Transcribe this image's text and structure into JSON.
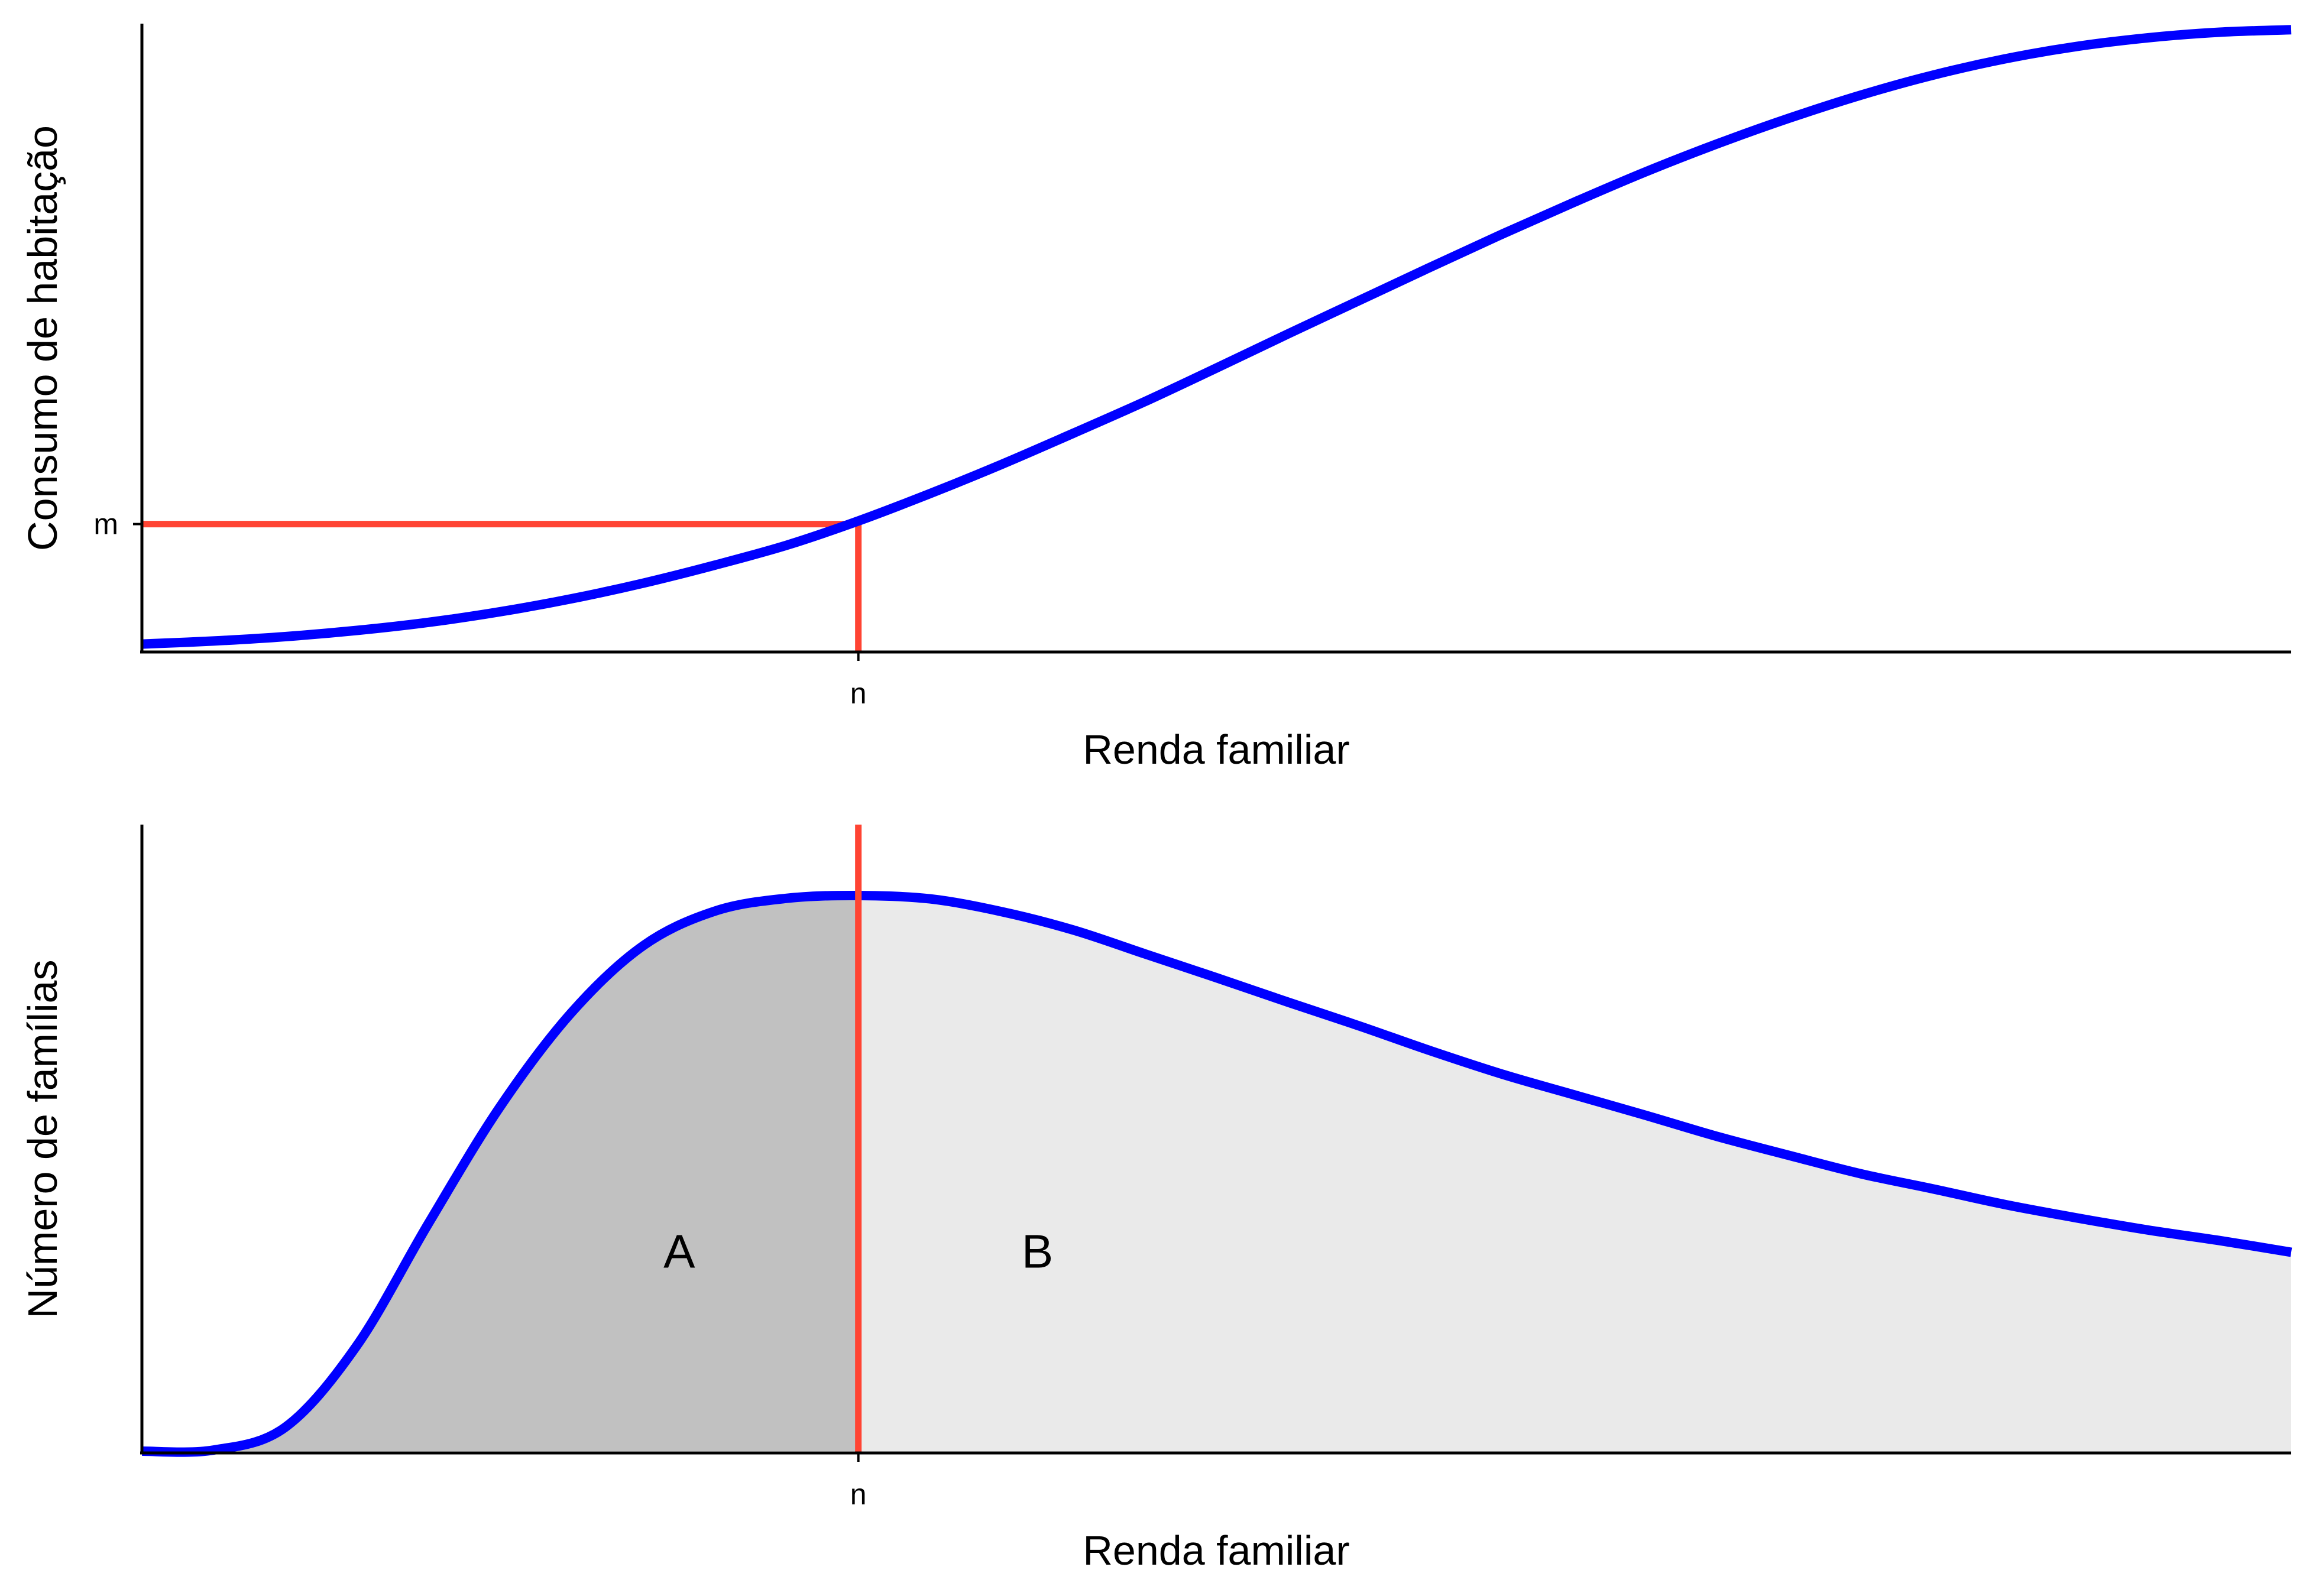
{
  "chart_data": [
    {
      "type": "line",
      "xlabel": "Renda familiar",
      "ylabel": "Consumo de habitação",
      "x_ticks": [
        {
          "x": 1.0,
          "label": "n"
        }
      ],
      "y_ticks": [
        {
          "y": 0.2,
          "label": "m"
        }
      ],
      "xlim": [
        0,
        3
      ],
      "ylim": [
        0,
        1
      ],
      "grid": false,
      "series": [
        {
          "color": "#0000FF",
          "x": [
            0.0,
            0.1,
            0.2,
            0.3,
            0.4,
            0.5,
            0.6,
            0.7,
            0.8,
            0.9,
            1.0,
            1.1,
            1.2,
            1.3,
            1.4,
            1.5,
            1.6,
            1.7,
            1.8,
            1.9,
            2.0,
            2.1,
            2.2,
            2.3,
            2.4,
            2.5,
            2.6,
            2.7,
            2.8,
            2.9,
            3.0
          ],
          "y": [
            0.007,
            0.012,
            0.019,
            0.029,
            0.042,
            0.059,
            0.08,
            0.105,
            0.134,
            0.166,
            0.205,
            0.249,
            0.296,
            0.346,
            0.397,
            0.451,
            0.506,
            0.56,
            0.614,
            0.667,
            0.718,
            0.767,
            0.812,
            0.853,
            0.89,
            0.922,
            0.948,
            0.968,
            0.982,
            0.991,
            0.995
          ]
        }
      ],
      "guides": {
        "color": "#FF4433",
        "x": 1.0,
        "y": 0.2
      }
    },
    {
      "type": "area",
      "xlabel": "Renda familiar",
      "ylabel": "Número de famílias",
      "x_ticks": [
        {
          "x": 1.0,
          "label": "n"
        }
      ],
      "xlim": [
        0,
        3
      ],
      "ylim": [
        0,
        1
      ],
      "grid": false,
      "series": [
        {
          "color": "#0000FF",
          "x": [
            0.0,
            0.1,
            0.2,
            0.3,
            0.4,
            0.5,
            0.6,
            0.7,
            0.8,
            0.9,
            1.0,
            1.1,
            1.2,
            1.3,
            1.4,
            1.5,
            1.6,
            1.7,
            1.8,
            1.9,
            2.0,
            2.1,
            2.2,
            2.3,
            2.4,
            2.5,
            2.6,
            2.7,
            2.8,
            2.9,
            3.0
          ],
          "y": [
            0.0,
            0.002,
            0.043,
            0.19,
            0.41,
            0.62,
            0.79,
            0.91,
            0.972,
            0.995,
            1.0,
            0.994,
            0.971,
            0.938,
            0.895,
            0.852,
            0.808,
            0.765,
            0.72,
            0.678,
            0.641,
            0.604,
            0.566,
            0.532,
            0.499,
            0.472,
            0.444,
            0.42,
            0.398,
            0.379,
            0.358
          ]
        }
      ],
      "regions": [
        {
          "label": "A",
          "fill": "#C1C1C1",
          "from": 0,
          "to": 1.0,
          "label_pos": [
            0.75,
            0.36
          ]
        },
        {
          "label": "B",
          "fill": "#EAEAEA",
          "from": 1.0,
          "to": 3.0,
          "label_pos": [
            1.25,
            0.36
          ]
        }
      ],
      "guides": {
        "color": "#FF4433",
        "x": 1.0
      }
    }
  ]
}
